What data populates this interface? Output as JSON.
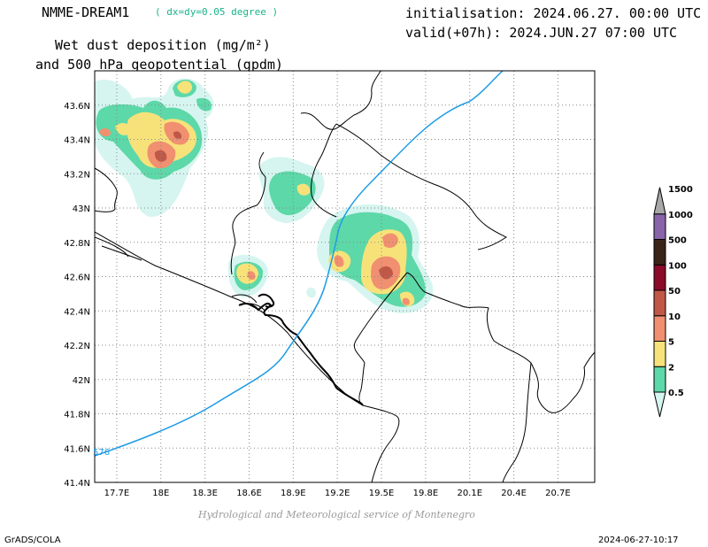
{
  "header": {
    "model": "NMME-DREAM1",
    "resolution": "( dx=dy=0.05 degree )",
    "product_line1": "Wet dust deposition (mg/m²)",
    "product_line2": "and 500 hPa geopotential (gpdm)",
    "initialisation": "initialisation: 2024.06.27. 00:00 UTC",
    "valid": "valid(+07h): 2024.JUN.27 07:00 UTC"
  },
  "map": {
    "lon_range": [
      17.55,
      20.95
    ],
    "lat_range": [
      41.4,
      43.8
    ],
    "lon_ticks": [
      "17.7E",
      "18E",
      "18.3E",
      "18.6E",
      "18.9E",
      "19.2E",
      "19.5E",
      "19.8E",
      "20.1E",
      "20.4E",
      "20.7E"
    ],
    "lat_ticks": [
      "41.4N",
      "41.6N",
      "41.8N",
      "42N",
      "42.2N",
      "42.4N",
      "42.6N",
      "42.8N",
      "43N",
      "43.2N",
      "43.4N",
      "43.6N"
    ],
    "grid": "dotted",
    "contour_label": "576",
    "contour_color": "#1e9be6"
  },
  "legend": {
    "levels": [
      "0.5",
      "2",
      "5",
      "10",
      "50",
      "100",
      "500",
      "1000",
      "1500"
    ],
    "colors": [
      "#d6f5f0",
      "#5dd8a8",
      "#f7e27a",
      "#f09070",
      "#c05848",
      "#8a0a28",
      "#3a2418",
      "#8a64a8",
      "#a8a8a8"
    ]
  },
  "credit": "Hydrological and Meteorological service of Montenegro",
  "footer": {
    "left": "GrADS/COLA",
    "right": "2024-06-27-10:17"
  }
}
